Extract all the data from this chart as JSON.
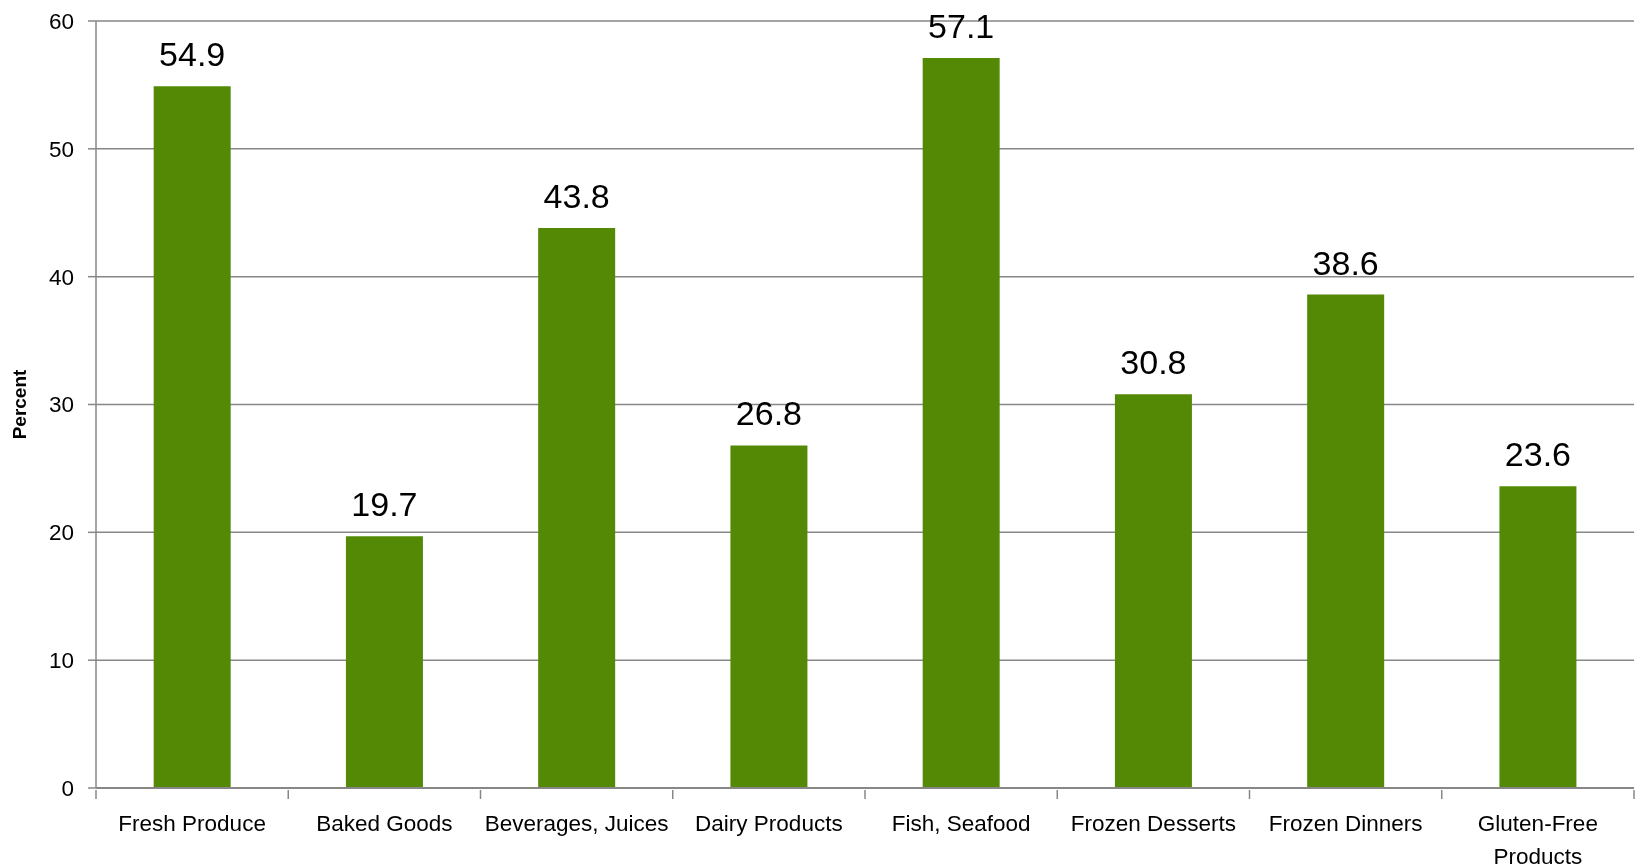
{
  "chart_data": {
    "type": "bar",
    "ylabel": "Percent",
    "categories": [
      "Fresh Produce",
      "Baked Goods",
      "Beverages, Juices",
      "Dairy Products",
      "Fish, Seafood",
      "Frozen Desserts",
      "Frozen Dinners",
      "Gluten-Free Products"
    ],
    "values": [
      54.9,
      19.7,
      43.8,
      26.8,
      57.1,
      30.8,
      38.6,
      23.6
    ],
    "color": "#538905",
    "ylim": [
      0,
      60
    ],
    "yticks": [
      0,
      10,
      20,
      30,
      40,
      50,
      60
    ],
    "grid": "y",
    "data_labels": true
  }
}
